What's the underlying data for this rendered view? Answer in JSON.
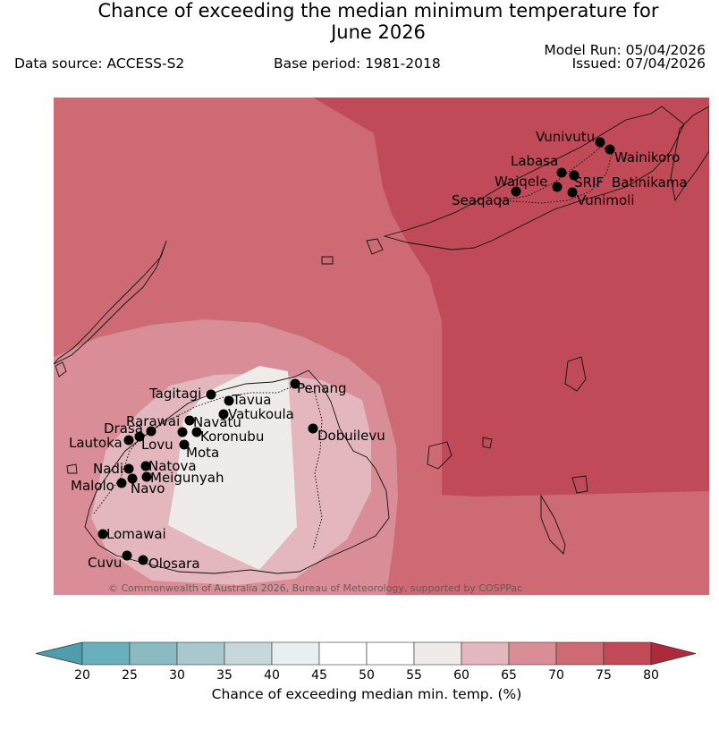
{
  "header": {
    "title_line1": "Chance of exceeding the median minimum temperature for",
    "title_line2": "June 2026",
    "data_source": "Data source: ACCESS-S2",
    "base_period": "Base period: 1981-2018",
    "model_run": "Model Run: 05/04/2026",
    "issued": "Issued: 07/04/2026"
  },
  "map": {
    "copyright": "© Commonwealth of Australia 2026, Bureau of Meteorology, supported by COSPPac",
    "stations": [
      {
        "name": "Vunivutu"
      },
      {
        "name": "Wainikoro"
      },
      {
        "name": "Labasa"
      },
      {
        "name": "Waiqele"
      },
      {
        "name": "SRIF"
      },
      {
        "name": "Batinikama"
      },
      {
        "name": "Seaqaqa"
      },
      {
        "name": "Vunimoli"
      },
      {
        "name": "Penang"
      },
      {
        "name": "Tagitagi"
      },
      {
        "name": "Tavua"
      },
      {
        "name": "Vatukoula"
      },
      {
        "name": "Rarawai"
      },
      {
        "name": "Navatu"
      },
      {
        "name": "Drasa"
      },
      {
        "name": "Koronubu"
      },
      {
        "name": "Lautoka"
      },
      {
        "name": "Lovu"
      },
      {
        "name": "Mota"
      },
      {
        "name": "Dobuilevu"
      },
      {
        "name": "Nadi"
      },
      {
        "name": "Natova"
      },
      {
        "name": "Meigunyah"
      },
      {
        "name": "Malolo"
      },
      {
        "name": "Navo"
      },
      {
        "name": "Lomawai"
      },
      {
        "name": "Cuvu"
      },
      {
        "name": "Olosara"
      }
    ]
  },
  "colorbar": {
    "title": "Chance of exceeding median min. temp. (%)",
    "ticks": [
      "20",
      "25",
      "30",
      "35",
      "40",
      "45",
      "50",
      "55",
      "60",
      "65",
      "70",
      "75",
      "80"
    ],
    "colors": [
      "#6aafbc",
      "#8cbac3",
      "#a9c8cd",
      "#c7d7db",
      "#e8eff1",
      "#ffffff",
      "#ffffff",
      "#eeebe9",
      "#e3b7bd",
      "#d98d96",
      "#cd6a74",
      "#c04a57"
    ],
    "under_color": "#4f9eae",
    "over_color": "#ad2a3d"
  },
  "legend_colors": {
    "c55_60": "#eeebe9",
    "c60_65": "#e3b7bd",
    "c65_70": "#d98d96",
    "c70_75": "#cd6a74",
    "c75_80": "#c04a57"
  }
}
